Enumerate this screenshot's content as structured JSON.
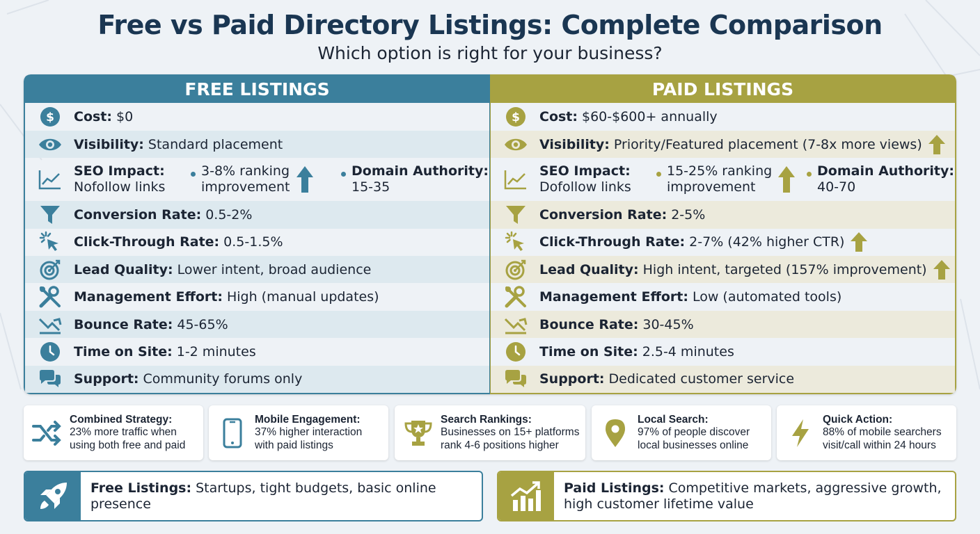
{
  "header": {
    "title": "Free vs Paid Directory Listings: Complete Comparison",
    "subtitle": "Which option is right for your business?"
  },
  "colors": {
    "free_accent": "#3b7f9c",
    "paid_accent": "#a7a242",
    "title": "#1a3652"
  },
  "free": {
    "heading": "FREE LISTINGS",
    "cost": {
      "label": "Cost:",
      "value": "$0"
    },
    "visibility": {
      "label": "Visibility:",
      "value": "Standard placement"
    },
    "seo": {
      "label": "SEO Impact:",
      "value": "Nofollow links",
      "ranking": "3-8% ranking",
      "ranking2": "improvement",
      "da_label": "Domain Authority:",
      "da_value": "15-35"
    },
    "conversion": {
      "label": "Conversion Rate:",
      "value": "0.5-2%"
    },
    "ctr": {
      "label": "Click-Through Rate:",
      "value": "0.5-1.5%"
    },
    "lead": {
      "label": "Lead Quality:",
      "value": "Lower intent, broad audience"
    },
    "effort": {
      "label": "Management Effort:",
      "value": "High (manual updates)"
    },
    "bounce": {
      "label": "Bounce Rate:",
      "value": "45-65%"
    },
    "time": {
      "label": "Time on Site:",
      "value": "1-2 minutes"
    },
    "support": {
      "label": "Support:",
      "value": "Community forums only"
    }
  },
  "paid": {
    "heading": "PAID LISTINGS",
    "cost": {
      "label": "Cost:",
      "value": "$60-$600+ annually"
    },
    "visibility": {
      "label": "Visibility:",
      "value": "Priority/Featured placement (7-8x more views)"
    },
    "seo": {
      "label": "SEO Impact:",
      "value": "Dofollow links",
      "ranking": "15-25% ranking",
      "ranking2": "improvement",
      "da_label": "Domain Authority:",
      "da_value": "40-70"
    },
    "conversion": {
      "label": "Conversion Rate:",
      "value": "2-5%"
    },
    "ctr": {
      "label": "Click-Through Rate:",
      "value": "2-7% (42% higher CTR)"
    },
    "lead": {
      "label": "Lead Quality:",
      "value": "High intent, targeted (157% improvement)"
    },
    "effort": {
      "label": "Management Effort:",
      "value": "Low (automated tools)"
    },
    "bounce": {
      "label": "Bounce Rate:",
      "value": "30-45%"
    },
    "time": {
      "label": "Time on Site:",
      "value": "2.5-4 minutes"
    },
    "support": {
      "label": "Support:",
      "value": "Dedicated customer service"
    }
  },
  "cards": [
    {
      "title": "Combined Strategy:",
      "line1": "23% more traffic when",
      "line2": "using both free and paid",
      "icon": "shuffle-icon"
    },
    {
      "title": "Mobile Engagement:",
      "line1": "37% higher interaction",
      "line2": "with paid listings",
      "icon": "smartphone-icon"
    },
    {
      "title": "Search Rankings:",
      "line1": "Businesses on 15+ platforms",
      "line2": "rank 4-6 positions higher",
      "icon": "trophy-icon"
    },
    {
      "title": "Local Search:",
      "line1": "97% of people discover",
      "line2": "local businesses online",
      "icon": "map-pin-icon"
    },
    {
      "title": "Quick Action:",
      "line1": "88% of mobile searchers",
      "line2": "visit/call within 24 hours",
      "icon": "lightning-icon"
    }
  ],
  "recommendations": {
    "free": {
      "label": "Free Listings:",
      "value": "Startups, tight budgets, basic online presence",
      "icon": "rocket-icon"
    },
    "paid": {
      "label": "Paid Listings:",
      "value1": "Competitive markets, aggressive growth,",
      "value2": "high customer lifetime value",
      "icon": "growth-chart-icon"
    }
  }
}
